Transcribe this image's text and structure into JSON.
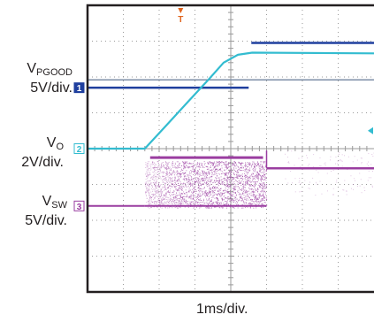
{
  "chart_data": {
    "type": "line",
    "title": "",
    "xlabel": "1ms/div.",
    "x_unit": "ms",
    "xlim": [
      0,
      8
    ],
    "grid": true,
    "grid_divisions": {
      "x": 8,
      "y": 8
    },
    "channels": [
      {
        "id": "pgood",
        "marker": "1",
        "name_main": "V",
        "name_sub": "PGOOD",
        "scale": "5V/div.",
        "color": "#1f3f9e",
        "low_level_div": 5.7,
        "high_level_div": 6.95,
        "transition_ms": 4.5,
        "x": [
          0,
          4.5,
          4.5,
          4.5,
          8
        ],
        "y_div": [
          5.7,
          5.7,
          6.3,
          6.95,
          6.95
        ]
      },
      {
        "id": "vo",
        "marker": "2",
        "name_main": "V",
        "name_sub": "O",
        "scale": "2V/div.",
        "color": "#33bcd0",
        "x": [
          0,
          1.6,
          2.2,
          2.8,
          3.4,
          3.8,
          4.2,
          4.6,
          8
        ],
        "y_div": [
          4.0,
          4.0,
          4.65,
          5.3,
          5.95,
          6.4,
          6.62,
          6.68,
          6.66
        ]
      },
      {
        "id": "vsw",
        "marker": "3",
        "name_main": "V",
        "name_sub": "SW",
        "scale": "5V/div.",
        "color": "#9a3da0",
        "switching_start_ms": 1.6,
        "switching_end_ms": 5.0,
        "low_level_div": 2.4,
        "high_level_div": 3.75,
        "post_level_div": 3.45
      }
    ],
    "trigger_marker": "T",
    "trigger_color": "#e0641e",
    "trigger_time_ms": 2.6,
    "trigger_arrow_color": "#33bcd0",
    "ref_line_level_div": 5.92,
    "ref_line_color": "#7c8ea6"
  }
}
